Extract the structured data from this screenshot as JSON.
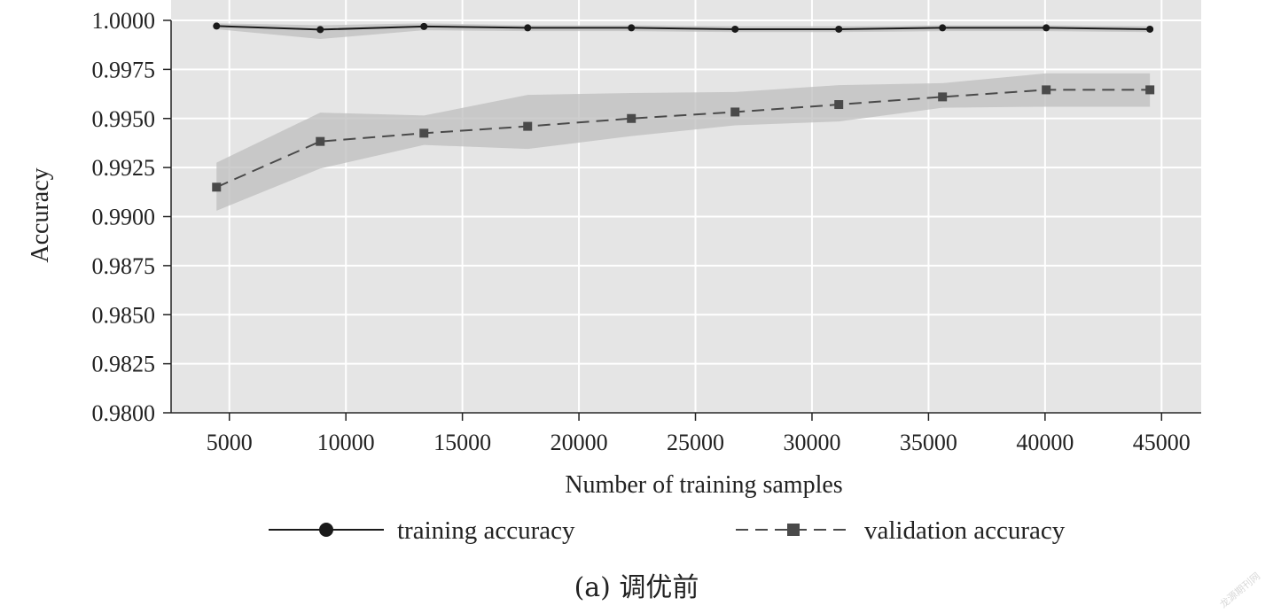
{
  "chart_data": {
    "type": "line",
    "title": "",
    "xlabel": "Number of training samples",
    "ylabel": "Accuracy",
    "xlim": [
      2500,
      46700
    ],
    "ylim": [
      0.98,
      1.0
    ],
    "x_ticks": [
      5000,
      10000,
      15000,
      20000,
      25000,
      30000,
      35000,
      40000,
      45000
    ],
    "y_ticks": [
      0.98,
      0.9825,
      0.985,
      0.9875,
      0.99,
      0.9925,
      0.995,
      0.9975,
      1.0
    ],
    "y_tick_labels": [
      "0.9800",
      "0.9825",
      "0.9850",
      "0.9875",
      "0.9900",
      "0.9925",
      "0.9950",
      "0.9975",
      "1.0000"
    ],
    "grid": true,
    "legend_position": "bottom",
    "x": [
      4450,
      8900,
      13350,
      17800,
      22250,
      26700,
      31150,
      35600,
      40050,
      44500
    ],
    "series": [
      {
        "name": "training accuracy",
        "style": "solid",
        "marker": "circle",
        "color": "#1a1a1a",
        "values": [
          0.99971,
          0.99953,
          0.99969,
          0.99962,
          0.99962,
          0.99955,
          0.99955,
          0.99962,
          0.99962,
          0.99955
        ],
        "band_upper": [
          0.99985,
          0.99975,
          0.99985,
          0.99975,
          0.99975,
          0.9997,
          0.9997,
          0.99975,
          0.99975,
          0.9997
        ],
        "band_lower": [
          0.99955,
          0.99905,
          0.9995,
          0.99945,
          0.99945,
          0.9994,
          0.9994,
          0.99945,
          0.99945,
          0.9994
        ]
      },
      {
        "name": "validation accuracy",
        "style": "dashed",
        "marker": "square",
        "color": "#4a4a4a",
        "values": [
          0.9915,
          0.99383,
          0.99425,
          0.9946,
          0.995,
          0.99533,
          0.99571,
          0.9961,
          0.99646,
          0.99646
        ],
        "band_upper": [
          0.99275,
          0.9953,
          0.99515,
          0.9962,
          0.9963,
          0.99635,
          0.9967,
          0.9968,
          0.9973,
          0.9973
        ],
        "band_lower": [
          0.9903,
          0.99245,
          0.99365,
          0.99345,
          0.9941,
          0.99465,
          0.99485,
          0.99555,
          0.9956,
          0.9956
        ]
      }
    ]
  },
  "caption": "(a) 调优前",
  "watermark": "龙源期刊网",
  "colors": {
    "plot_background": "#e5e5e5",
    "band_fill": "#bdbdbd",
    "grid": "#ffffff"
  }
}
